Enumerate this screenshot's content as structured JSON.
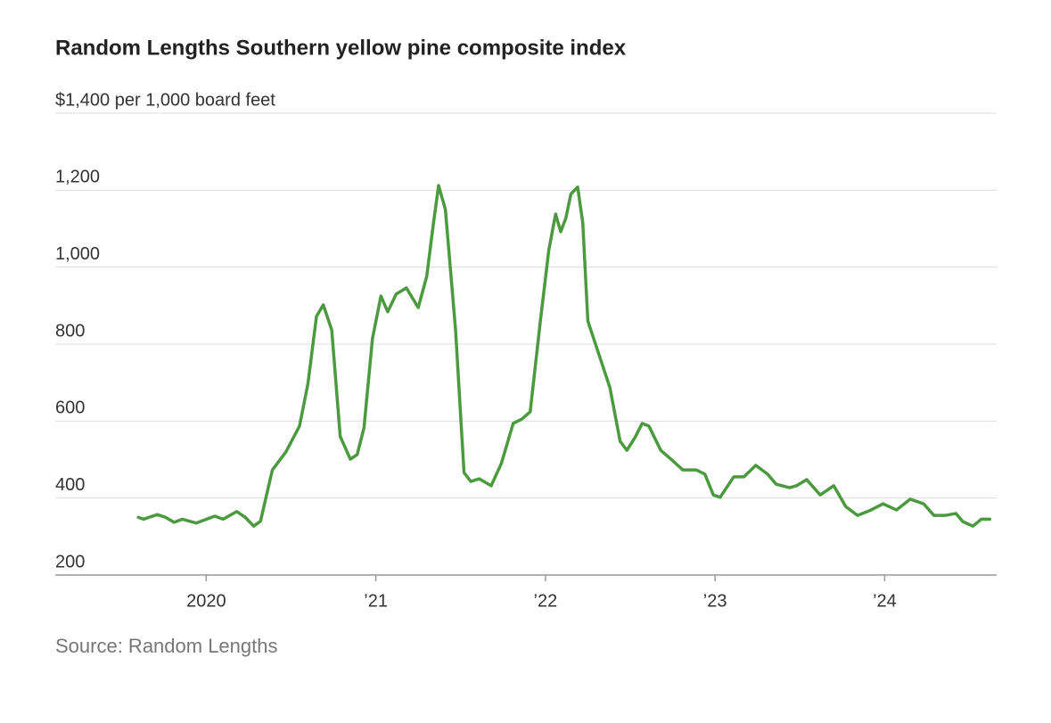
{
  "chart_data": {
    "type": "line",
    "title": "Random Lengths Southern yellow pine composite index",
    "source": "Source: Random Lengths",
    "xlim": [
      2019.11,
      2024.66
    ],
    "xticks": [
      2020,
      {
        "value": 2021,
        "label": "’21"
      },
      {
        "value": 2022,
        "label": "’22"
      },
      {
        "value": 2023,
        "label": "’23"
      },
      {
        "value": 2024,
        "label": "’24"
      }
    ],
    "ylim": [
      200,
      1400
    ],
    "yticks": [
      200,
      {
        "value": 400,
        "label": "400"
      },
      {
        "value": 600,
        "label": "600"
      },
      {
        "value": 800,
        "label": "800"
      },
      {
        "value": 1000,
        "label": "1,000"
      },
      {
        "value": 1200,
        "label": "1,200"
      },
      {
        "value": 1400,
        "label": "$1,400 per 1,000 board feet"
      }
    ],
    "grid": true,
    "x": [
      2019.6,
      2019.63,
      2019.71,
      2019.76,
      2019.81,
      2019.86,
      2019.94,
      2020.05,
      2020.1,
      2020.18,
      2020.23,
      2020.28,
      2020.32,
      2020.39,
      2020.47,
      2020.55,
      2020.6,
      2020.65,
      2020.69,
      2020.74,
      2020.79,
      2020.85,
      2020.89,
      2020.93,
      2020.98,
      2021.03,
      2021.07,
      2021.12,
      2021.18,
      2021.25,
      2021.3,
      2021.34,
      2021.37,
      2021.41,
      2021.47,
      2021.52,
      2021.56,
      2021.61,
      2021.68,
      2021.74,
      2021.81,
      2021.86,
      2021.91,
      2021.97,
      2022.02,
      2022.06,
      2022.09,
      2022.12,
      2022.15,
      2022.19,
      2022.22,
      2022.25,
      2022.32,
      2022.38,
      2022.44,
      2022.48,
      2022.53,
      2022.57,
      2022.61,
      2022.68,
      2022.74,
      2022.81,
      2022.89,
      2022.94,
      2022.99,
      2023.03,
      2023.11,
      2023.17,
      2023.24,
      2023.31,
      2023.36,
      2023.44,
      2023.48,
      2023.54,
      2023.62,
      2023.7,
      2023.77,
      2023.84,
      2023.91,
      2023.99,
      2024.07,
      2024.15,
      2024.23,
      2024.29,
      2024.36,
      2024.42,
      2024.46,
      2024.52,
      2024.57,
      2024.62
    ],
    "series": [
      {
        "color": "#4c9a3f",
        "values": [
          350,
          345,
          357,
          350,
          337,
          345,
          335,
          353,
          345,
          365,
          350,
          327,
          340,
          473,
          520,
          587,
          698,
          872,
          902,
          837,
          560,
          501,
          513,
          582,
          814,
          925,
          884,
          930,
          946,
          895,
          976,
          1115,
          1212,
          1150,
          837,
          466,
          443,
          450,
          432,
          490,
          594,
          605,
          624,
          860,
          1045,
          1138,
          1092,
          1127,
          1190,
          1208,
          1115,
          860,
          767,
          687,
          548,
          524,
          559,
          594,
          587,
          524,
          501,
          473,
          473,
          462,
          408,
          402,
          455,
          455,
          485,
          462,
          436,
          427,
          432,
          448,
          408,
          432,
          378,
          355,
          367,
          385,
          369,
          397,
          385,
          355,
          355,
          360,
          339,
          327,
          345,
          345
        ]
      }
    ]
  }
}
